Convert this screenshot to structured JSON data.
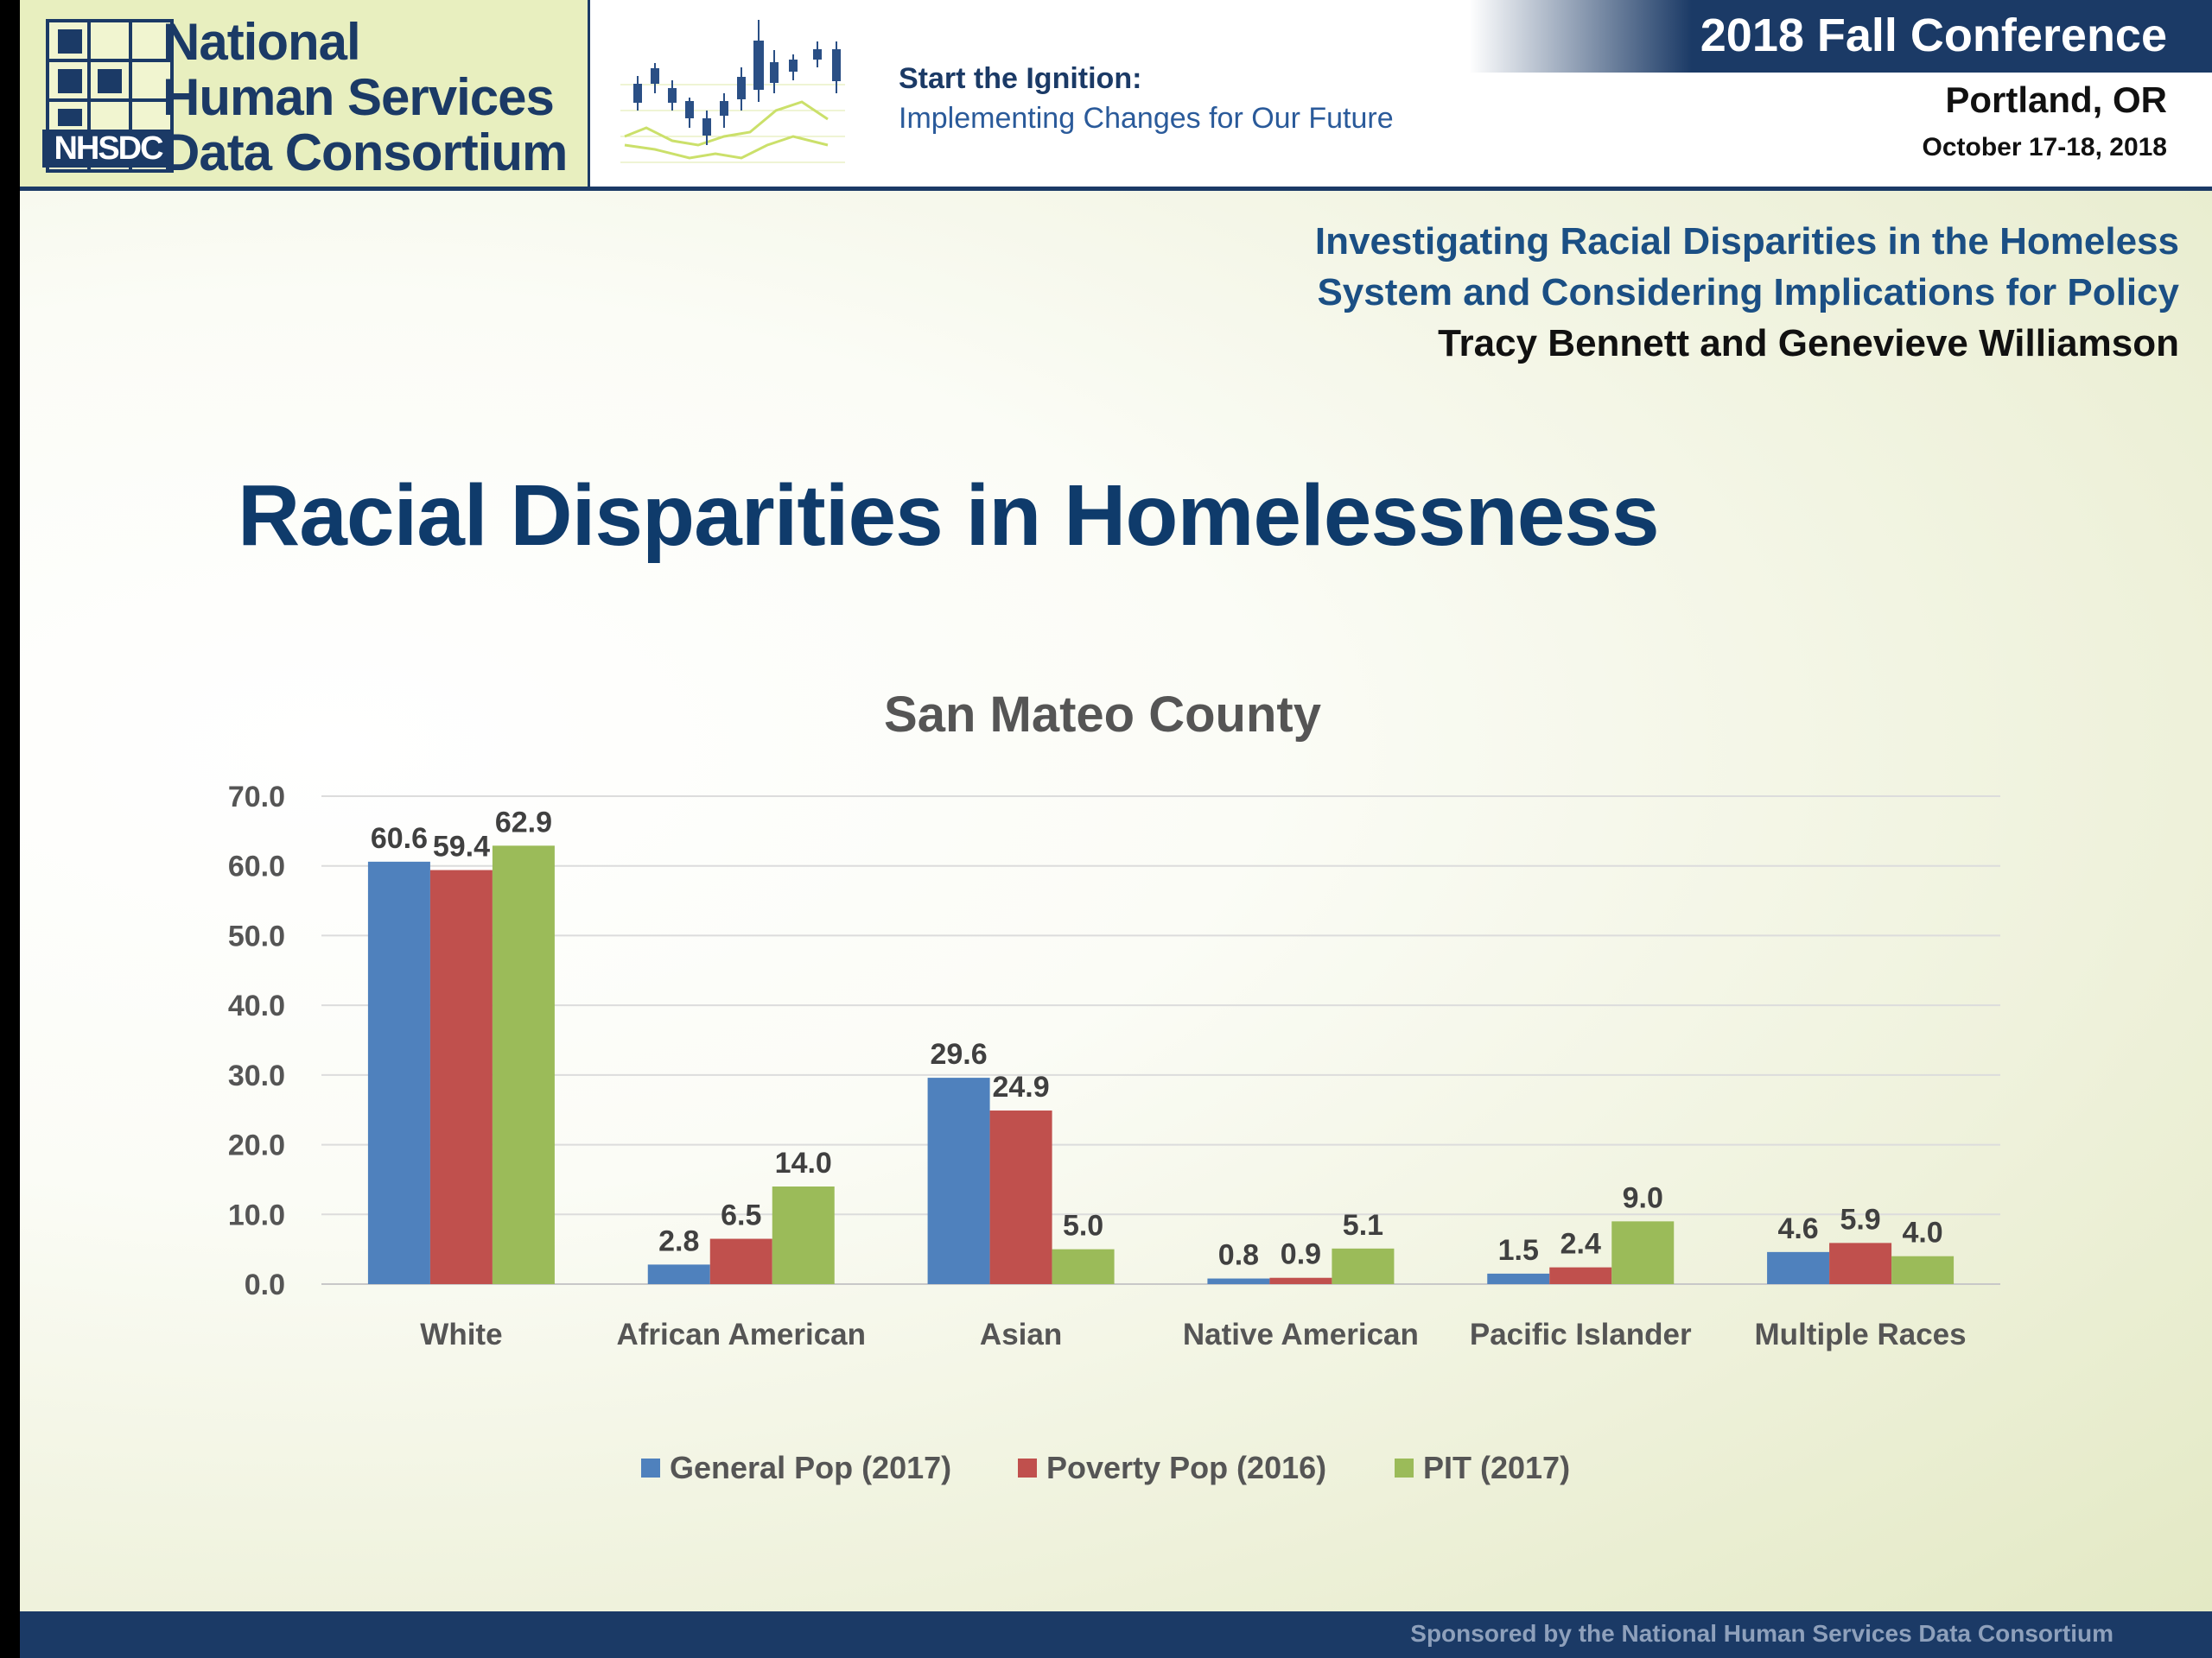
{
  "header": {
    "logo_abbr": "NHSDC",
    "logo_lines": [
      "National",
      "Human Services",
      "Data Consortium"
    ],
    "tagline_1": "Start the Ignition:",
    "tagline_2": "Implementing Changes for Our Future",
    "conference": "2018 Fall Conference",
    "city": "Portland, OR",
    "dates": "October 17-18, 2018"
  },
  "presentation": {
    "title_line_1": "Investigating Racial Disparities in the Homeless",
    "title_line_2": "System and Considering Implications for Policy",
    "authors": "Tracy Bennett and Genevieve Williamson"
  },
  "slide_title": "Racial Disparities in Homelessness",
  "chart_data": {
    "type": "bar",
    "title": "San Mateo County",
    "categories": [
      "White",
      "African American",
      "Asian",
      "Native American",
      "Pacific Islander",
      "Multiple Races"
    ],
    "series": [
      {
        "name": "General Pop (2017)",
        "color": "#4f81bd",
        "values": [
          60.6,
          2.8,
          29.6,
          0.8,
          1.5,
          4.6
        ]
      },
      {
        "name": "Poverty Pop (2016)",
        "color": "#c0504d",
        "values": [
          59.4,
          6.5,
          24.9,
          0.9,
          2.4,
          5.9
        ]
      },
      {
        "name": "PIT (2017)",
        "color": "#9bbb59",
        "values": [
          62.9,
          14.0,
          5.0,
          5.1,
          9.0,
          4.0
        ]
      }
    ],
    "y_ticks": [
      "0.0",
      "10.0",
      "20.0",
      "30.0",
      "40.0",
      "50.0",
      "60.0",
      "70.0"
    ],
    "ylim": [
      0,
      70
    ],
    "xlabel": "",
    "ylabel": "",
    "grid": true,
    "legend": "bottom"
  },
  "footer": {
    "text": "Sponsored by the National Human Services Data Consortium"
  },
  "colors": {
    "navy": "#1b3a66",
    "title_blue": "#0f3b6b",
    "lime": "#e8efbf"
  }
}
